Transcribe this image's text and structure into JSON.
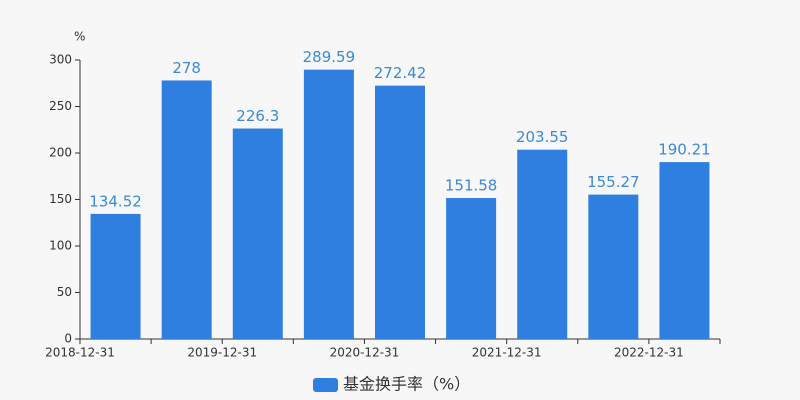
{
  "chart_data": {
    "type": "bar",
    "y_label": "%",
    "categories": [
      "2018-12-31",
      null,
      "2019-12-31",
      null,
      "2020-12-31",
      null,
      "2021-12-31",
      null,
      "2022-12-31"
    ],
    "series": [
      {
        "name": "基金换手率（%）",
        "color": "#2f7fe0",
        "values": [
          134.52,
          278,
          226.3,
          289.59,
          272.42,
          151.58,
          203.55,
          155.27,
          190.21
        ]
      }
    ],
    "ylim": [
      0,
      300
    ],
    "yticks": [
      0,
      50,
      100,
      150,
      200,
      250,
      300
    ],
    "grid": false,
    "legend": "bottom"
  }
}
